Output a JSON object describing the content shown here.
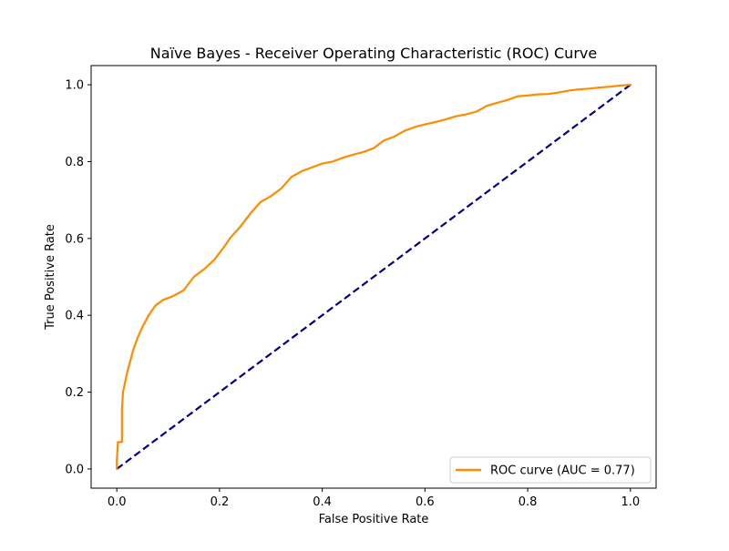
{
  "chart_data": {
    "type": "line",
    "title": "Naïve Bayes - Receiver Operating Characteristic (ROC) Curve",
    "xlabel": "False Positive Rate",
    "ylabel": "True Positive Rate",
    "xlim": [
      -0.05,
      1.05
    ],
    "ylim": [
      -0.05,
      1.05
    ],
    "xticks": [
      0.0,
      0.2,
      0.4,
      0.6,
      0.8,
      1.0
    ],
    "yticks": [
      0.0,
      0.2,
      0.4,
      0.6,
      0.8,
      1.0
    ],
    "xtick_labels": [
      "0.0",
      "0.2",
      "0.4",
      "0.6",
      "0.8",
      "1.0"
    ],
    "ytick_labels": [
      "0.0",
      "0.2",
      "0.4",
      "0.6",
      "0.8",
      "1.0"
    ],
    "grid": false,
    "legend_position": "lower-right",
    "series": [
      {
        "name": "ROC curve (AUC = 0.77)",
        "color": "#ff8c00",
        "style": "solid",
        "x": [
          0.0,
          0.0,
          0.002,
          0.002,
          0.01,
          0.01,
          0.012,
          0.016,
          0.02,
          0.026,
          0.032,
          0.04,
          0.05,
          0.062,
          0.075,
          0.09,
          0.11,
          0.13,
          0.15,
          0.17,
          0.19,
          0.21,
          0.22,
          0.24,
          0.26,
          0.28,
          0.3,
          0.32,
          0.34,
          0.36,
          0.38,
          0.4,
          0.42,
          0.44,
          0.46,
          0.48,
          0.5,
          0.52,
          0.54,
          0.56,
          0.58,
          0.6,
          0.62,
          0.64,
          0.66,
          0.68,
          0.7,
          0.72,
          0.74,
          0.76,
          0.78,
          0.8,
          0.82,
          0.84,
          0.86,
          0.88,
          0.9,
          0.92,
          0.94,
          0.96,
          0.98,
          1.0
        ],
        "y": [
          0.0,
          0.02,
          0.065,
          0.07,
          0.07,
          0.155,
          0.2,
          0.225,
          0.25,
          0.28,
          0.31,
          0.34,
          0.37,
          0.4,
          0.425,
          0.44,
          0.45,
          0.465,
          0.5,
          0.52,
          0.545,
          0.58,
          0.6,
          0.63,
          0.665,
          0.695,
          0.71,
          0.73,
          0.76,
          0.775,
          0.785,
          0.795,
          0.8,
          0.81,
          0.818,
          0.825,
          0.835,
          0.855,
          0.865,
          0.88,
          0.89,
          0.897,
          0.903,
          0.91,
          0.918,
          0.923,
          0.93,
          0.945,
          0.953,
          0.96,
          0.97,
          0.972,
          0.975,
          0.976,
          0.98,
          0.985,
          0.988,
          0.99,
          0.993,
          0.995,
          0.998,
          1.0
        ]
      },
      {
        "name": "",
        "color": "#000080",
        "style": "dashed",
        "x": [
          0.0,
          1.0
        ],
        "y": [
          0.0,
          1.0
        ]
      }
    ]
  }
}
